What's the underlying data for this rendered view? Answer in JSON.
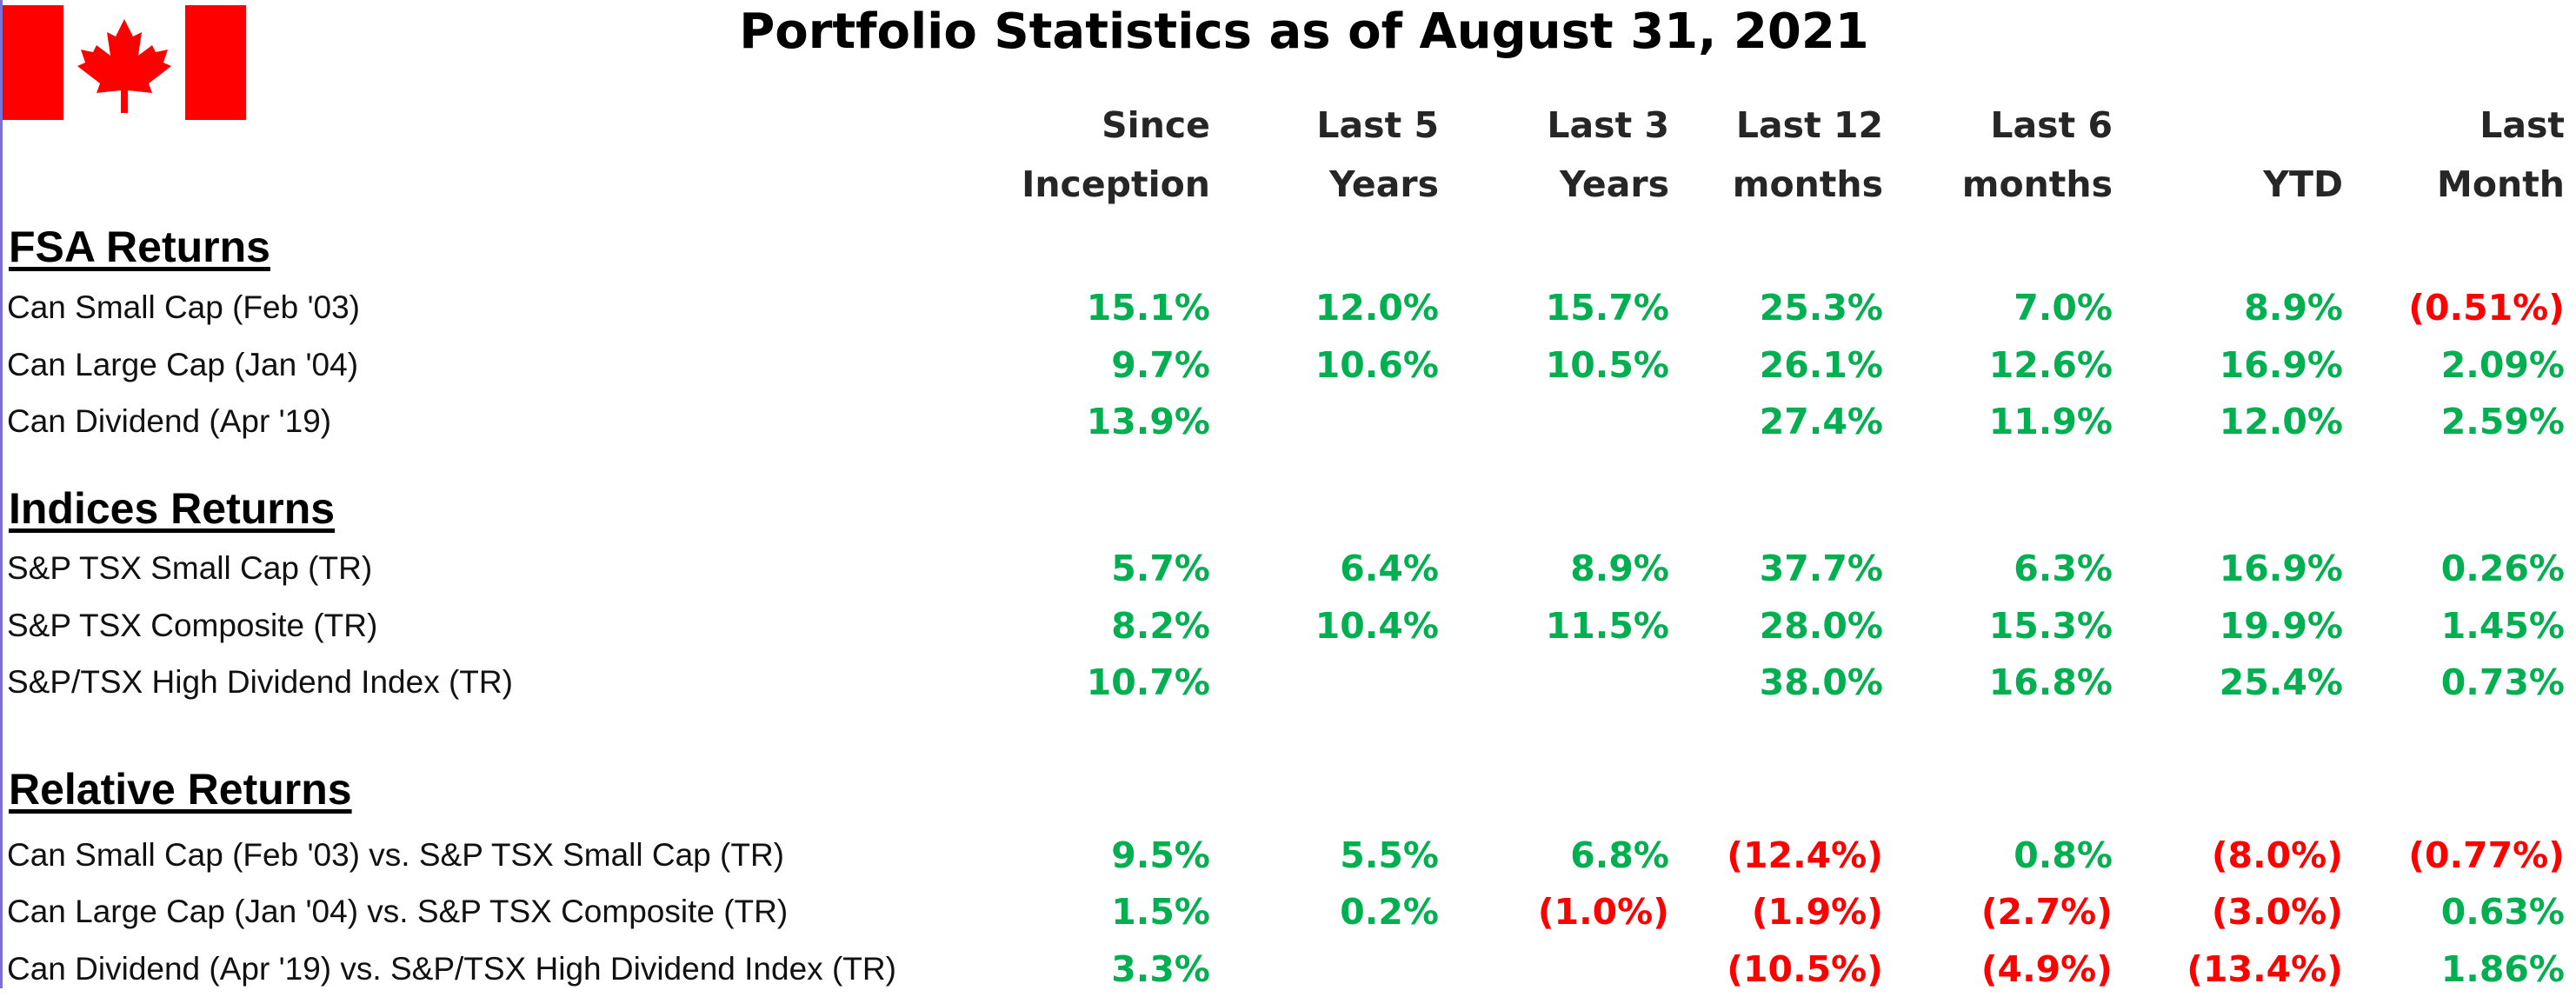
{
  "title": "Portfolio Statistics as of August 31, 2021",
  "colors": {
    "positive": "#00b050",
    "negative": "#ff0000",
    "flag_red": "#ff0000"
  },
  "flag_icon": "canada-flag-icon",
  "columns": [
    {
      "line1": "Since",
      "line2": "Inception"
    },
    {
      "line1": "Last 5",
      "line2": "Years"
    },
    {
      "line1": "Last 3",
      "line2": "Years"
    },
    {
      "line1": "Last 12",
      "line2": "months"
    },
    {
      "line1": "Last 6",
      "line2": "months"
    },
    {
      "line1": "",
      "line2": "YTD"
    },
    {
      "line1": "Last",
      "line2": "Month"
    }
  ],
  "sections": [
    {
      "heading": "FSA Returns",
      "rows": [
        {
          "label": "Can Small Cap (Feb '03)",
          "values": [
            "15.1%",
            "12.0%",
            "15.7%",
            "25.3%",
            "7.0%",
            "8.9%",
            "(0.51%)"
          ]
        },
        {
          "label": "Can Large Cap (Jan '04)",
          "values": [
            "9.7%",
            "10.6%",
            "10.5%",
            "26.1%",
            "12.6%",
            "16.9%",
            "2.09%"
          ]
        },
        {
          "label": "Can Dividend (Apr '19)",
          "values": [
            "13.9%",
            "",
            "",
            "27.4%",
            "11.9%",
            "12.0%",
            "2.59%"
          ]
        }
      ]
    },
    {
      "heading": "Indices Returns",
      "rows": [
        {
          "label": "S&P TSX Small Cap (TR)",
          "values": [
            "5.7%",
            "6.4%",
            "8.9%",
            "37.7%",
            "6.3%",
            "16.9%",
            "0.26%"
          ]
        },
        {
          "label": "S&P TSX Composite (TR)",
          "values": [
            "8.2%",
            "10.4%",
            "11.5%",
            "28.0%",
            "15.3%",
            "19.9%",
            "1.45%"
          ]
        },
        {
          "label": "S&P/TSX High Dividend Index (TR)",
          "values": [
            "10.7%",
            "",
            "",
            "38.0%",
            "16.8%",
            "25.4%",
            "0.73%"
          ]
        }
      ]
    },
    {
      "heading": "Relative Returns",
      "rows": [
        {
          "label": "Can Small Cap (Feb '03) vs. S&P TSX Small Cap (TR)",
          "values": [
            "9.5%",
            "5.5%",
            "6.8%",
            "(12.4%)",
            "0.8%",
            "(8.0%)",
            "(0.77%)"
          ]
        },
        {
          "label": "Can Large Cap (Jan '04) vs. S&P TSX Composite (TR)",
          "values": [
            "1.5%",
            "0.2%",
            "(1.0%)",
            "(1.9%)",
            "(2.7%)",
            "(3.0%)",
            "0.63%"
          ]
        },
        {
          "label": "Can Dividend (Apr '19) vs. S&P/TSX High Dividend Index (TR)",
          "values": [
            "3.3%",
            "",
            "",
            "(10.5%)",
            "(4.9%)",
            "(13.4%)",
            "1.86%"
          ]
        }
      ]
    }
  ]
}
